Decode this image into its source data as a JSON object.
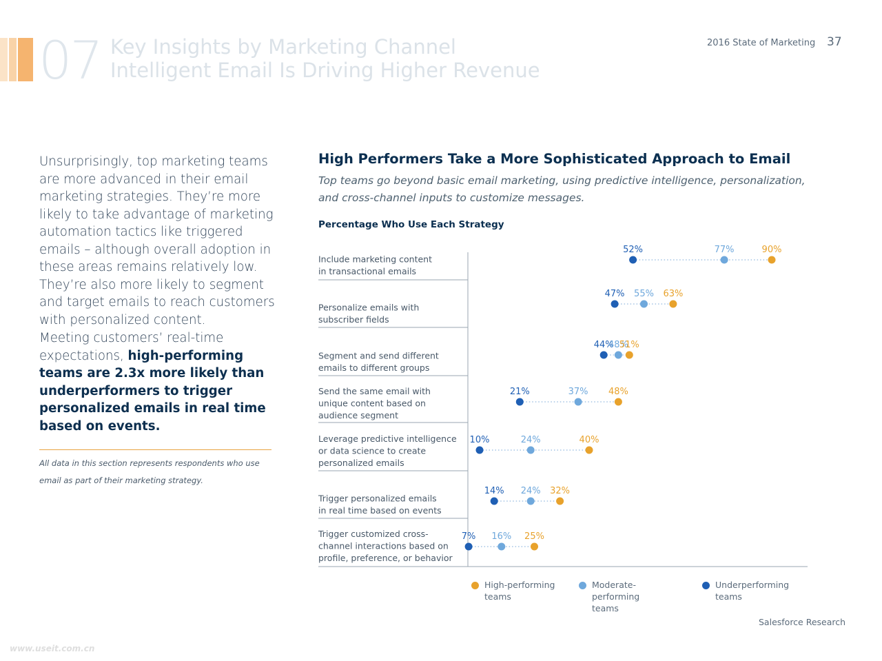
{
  "header": {
    "section_number": "07",
    "title": "Key Insights by Marketing Channel",
    "subtitle": "Intelligent Email Is Driving Higher Revenue",
    "report_name": "2016 State of Marketing",
    "page_number": "37",
    "accent_colors": [
      "#fbe3c7",
      "#f9d3a8",
      "#f5b46f"
    ]
  },
  "left": {
    "intro": "Unsurprisingly, top marketing teams are more advanced in their email marketing strategies. They’re more likely to take advantage of marketing automation tactics like triggered emails – although overall adoption in these areas remains relatively low. They’re also more likely to segment and target emails to reach customers with personalized content.",
    "callout_lead": "Meeting customers’ real-time expectations, ",
    "callout_bold": "high-performing teams are 2.3x more likely than underperformers to trigger personalized emails in real time based on events.",
    "footnote": "All data in this section represents respondents who use email as part of their marketing strategy."
  },
  "chart_header": {
    "title": "High Performers Take a More Sophisticated Approach to Email",
    "subtitle": "Top teams go beyond basic email marketing, using predictive intelligence, personalization, and cross-channel inputs to customize messages.",
    "heading": "Percentage Who Use Each Strategy"
  },
  "chart_data": {
    "type": "scatter",
    "title": "Percentage Who Use Each Strategy",
    "categories": [
      [
        "Include marketing content",
        "in transactional emails"
      ],
      [
        "Personalize emails with",
        "subscriber fields"
      ],
      [
        "Segment and send different",
        "emails to different groups"
      ],
      [
        "Send the same email with",
        "unique content based on",
        "audience segment"
      ],
      [
        "Leverage predictive intelligence",
        "or data science to create",
        "personalized emails"
      ],
      [
        "Trigger personalized emails",
        "in real time based on events"
      ],
      [
        "Trigger customized cross-",
        "channel interactions based on",
        "profile, preference, or behavior"
      ]
    ],
    "series": [
      {
        "name": "Underperforming teams",
        "color": "#1f5fb4",
        "values": [
          52,
          47,
          44,
          21,
          10,
          14,
          7
        ],
        "labels": [
          "52%",
          "47%",
          "44%",
          "21%",
          "10%",
          "14%",
          "7%"
        ]
      },
      {
        "name": "Moderate-performing teams",
        "color": "#6fa8dc",
        "values": [
          77,
          55,
          48,
          37,
          24,
          24,
          16
        ],
        "labels": [
          "77%",
          "55%",
          "48%",
          "37%",
          "24%",
          "24%",
          "16%"
        ]
      },
      {
        "name": "High-performing teams",
        "color": "#e8a22c",
        "values": [
          90,
          63,
          51,
          48,
          40,
          32,
          25
        ],
        "labels": [
          "90%",
          "63%",
          "51%",
          "48%",
          "40%",
          "32%",
          "25%"
        ]
      }
    ],
    "xlim": [
      0,
      100
    ],
    "grid": false,
    "legend_position": "bottom"
  },
  "legend": [
    {
      "line1": "High-performing",
      "line2": "teams",
      "color": "#e8a22c"
    },
    {
      "line1": "Moderate-performing",
      "line2": "teams",
      "color": "#6fa8dc"
    },
    {
      "line1": "Underperforming",
      "line2": "teams",
      "color": "#1f5fb4"
    }
  ],
  "footer": {
    "brand": "Salesforce Research",
    "watermark": "www.useit.com.cn"
  }
}
